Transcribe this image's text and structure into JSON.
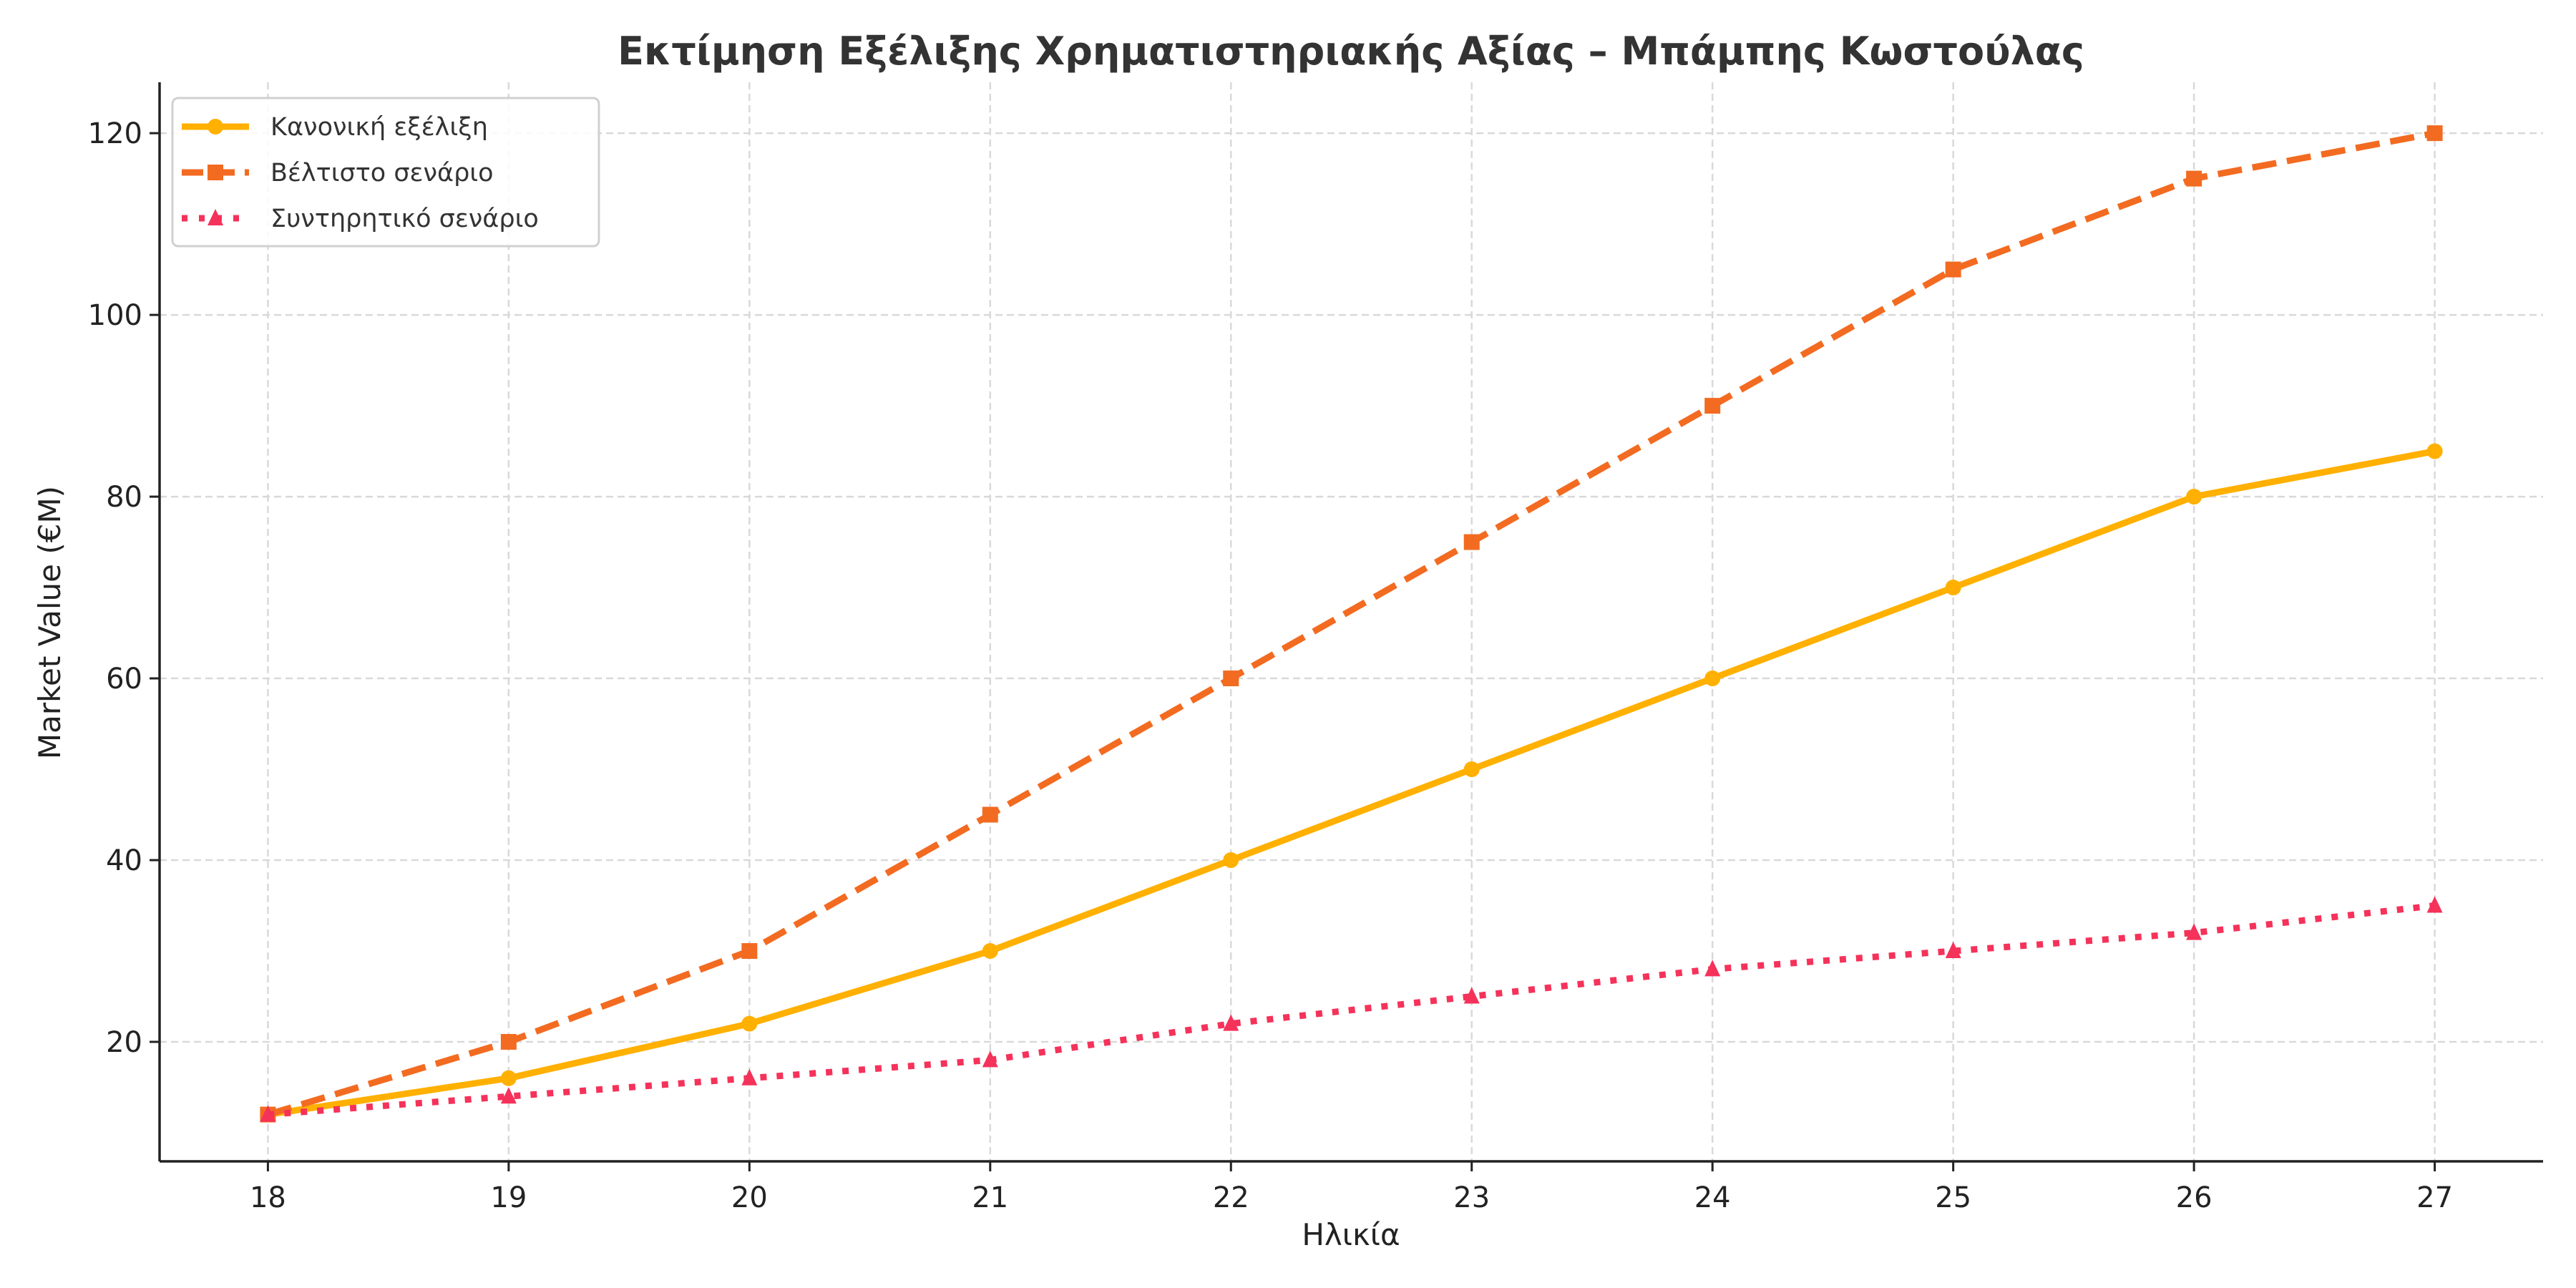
{
  "chart_data": {
    "type": "line",
    "title": "Εκτίμηση Εξέλιξης Χρηματιστηριακής Αξίας – Μπάμπης Κωστούλας",
    "xlabel": "Ηλικία",
    "ylabel": "Market Value (€M)",
    "x": [
      18,
      19,
      20,
      21,
      22,
      23,
      24,
      25,
      26,
      27
    ],
    "xlim": [
      17.55,
      27.45
    ],
    "ylim": [
      6.85,
      125.6
    ],
    "xticks": [
      18,
      19,
      20,
      21,
      22,
      23,
      24,
      25,
      26,
      27
    ],
    "yticks": [
      20,
      40,
      60,
      80,
      100,
      120
    ],
    "grid": true,
    "legend_position": "top-left",
    "series": [
      {
        "name": "Κανονική εξέλιξη",
        "values": [
          12,
          16,
          22,
          30,
          40,
          50,
          60,
          70,
          80,
          85
        ],
        "color": "#FFB000",
        "line_style": "solid",
        "marker": "circle"
      },
      {
        "name": "Βέλτιστο σενάριο",
        "values": [
          12,
          20,
          30,
          45,
          60,
          75,
          90,
          105,
          115,
          120
        ],
        "color": "#F26B21",
        "line_style": "dashed",
        "marker": "square"
      },
      {
        "name": "Συντηρητικό σενάριο",
        "values": [
          12,
          14,
          16,
          18,
          22,
          25,
          28,
          30,
          32,
          35
        ],
        "color": "#F5325A",
        "line_style": "dotted",
        "marker": "triangle"
      }
    ]
  }
}
